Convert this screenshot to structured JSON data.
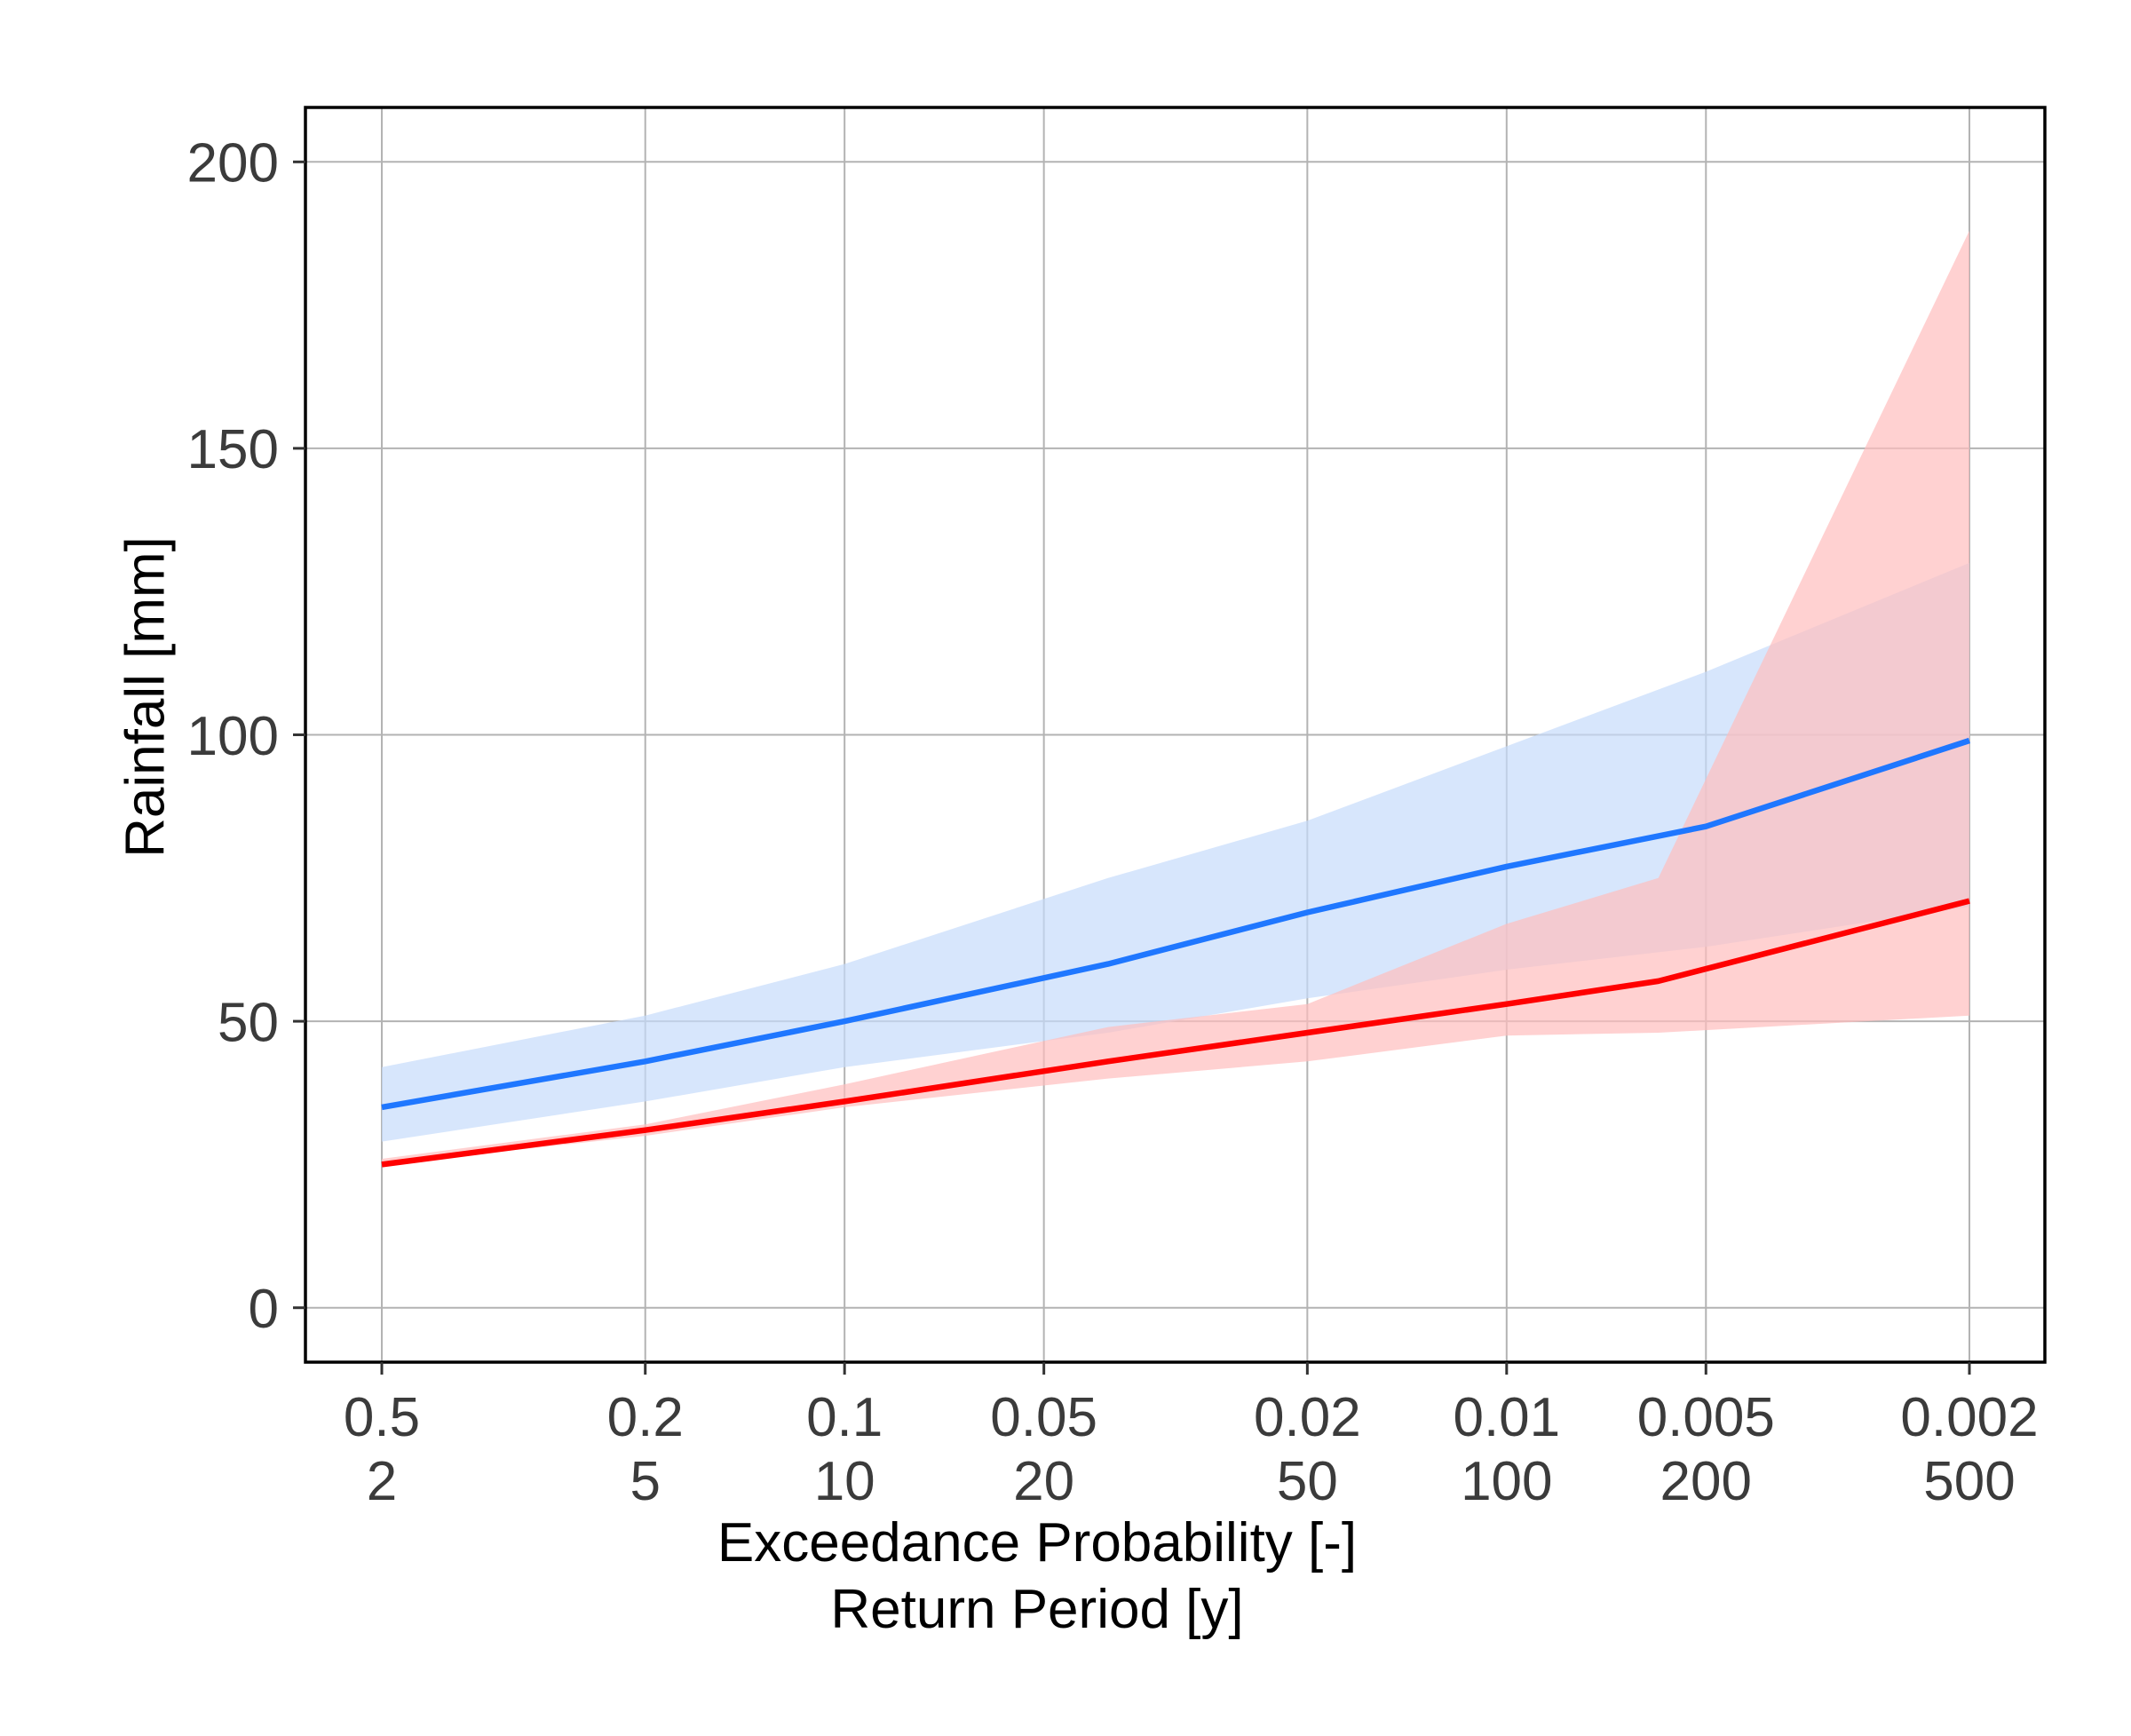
{
  "chart_data": {
    "type": "line",
    "title": "",
    "xlabel": "Exceedance Probability [-]",
    "xlabel_secondary": "Return Period [y]",
    "ylabel": "Rainfall [mm]",
    "x_scale": "log (exceedance probability, reversed)",
    "x_ticks": [
      {
        "prob": 0.5,
        "prob_label": "0.5",
        "period_label": "2"
      },
      {
        "prob": 0.2,
        "prob_label": "0.2",
        "period_label": "5"
      },
      {
        "prob": 0.1,
        "prob_label": "0.1",
        "period_label": "10"
      },
      {
        "prob": 0.05,
        "prob_label": "0.05",
        "period_label": "20"
      },
      {
        "prob": 0.02,
        "prob_label": "0.02",
        "period_label": "50"
      },
      {
        "prob": 0.01,
        "prob_label": "0.01",
        "period_label": "100"
      },
      {
        "prob": 0.005,
        "prob_label": "0.005",
        "period_label": "200"
      },
      {
        "prob": 0.002,
        "prob_label": "0.002",
        "period_label": "500"
      }
    ],
    "ylim": [
      -9.5,
      209.5
    ],
    "y_ticks": [
      0,
      50,
      100,
      150,
      200
    ],
    "y_tick_labels": [
      "0",
      "50",
      "100",
      "150",
      "200"
    ],
    "grid": true,
    "legend": "none",
    "series": [
      {
        "color": "#1f77ff",
        "band_color": "#c6dbfb",
        "x": [
          0.5,
          0.2,
          0.1,
          0.04,
          0.02,
          0.01,
          0.005,
          0.002
        ],
        "y": [
          35,
          43,
          50,
          60,
          69,
          77,
          84,
          99
        ],
        "upper": [
          42,
          51,
          60,
          75,
          85,
          98,
          111,
          130
        ],
        "lower": [
          29,
          36,
          42,
          48,
          54,
          59,
          63,
          70
        ]
      },
      {
        "color": "#ff0000",
        "band_color": "#ffbdbd",
        "x": [
          0.5,
          0.2,
          0.1,
          0.04,
          0.02,
          0.01,
          0.0059,
          0.002
        ],
        "y": [
          25,
          31,
          36,
          43,
          48,
          53,
          57,
          71
        ],
        "upper": [
          26,
          32,
          39,
          49,
          53,
          67,
          75,
          188
        ],
        "lower": [
          25,
          30,
          35,
          40,
          43,
          47.5,
          48,
          51
        ]
      }
    ]
  }
}
